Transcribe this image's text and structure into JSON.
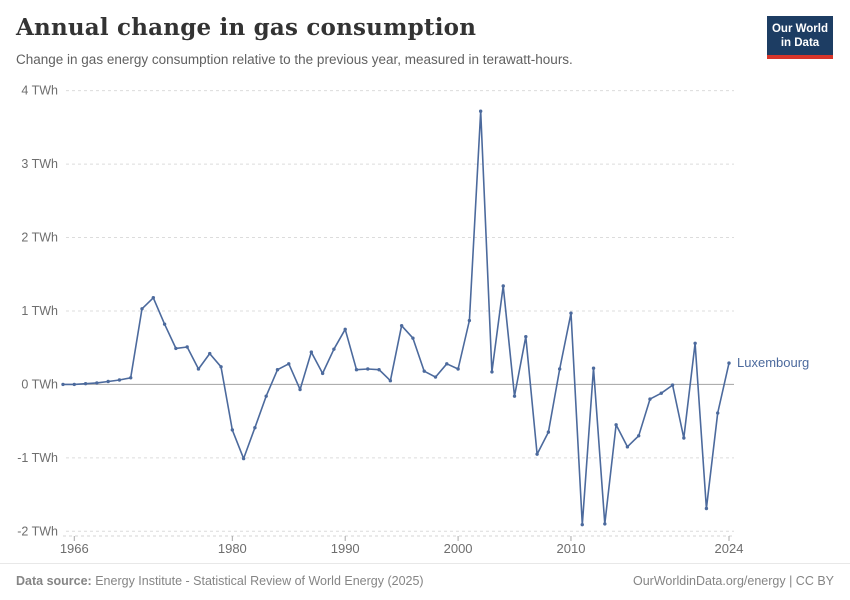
{
  "header": {
    "title": "Annual change in gas consumption",
    "subtitle": "Change in gas energy consumption relative to the previous year, measured in terawatt-hours."
  },
  "logo": {
    "line1": "Our World",
    "line2": "in Data",
    "bg_color": "#1d3d63",
    "bar_color": "#d8352a"
  },
  "footer": {
    "source_label": "Data source:",
    "source_text": " Energy Institute - Statistical Review of World Energy (2025)",
    "right_text": "OurWorldinData.org/energy | CC BY"
  },
  "chart_data": {
    "type": "line",
    "title": "Annual change in gas consumption",
    "entity_label": "Luxembourg",
    "unit_suffix": " TWh",
    "line_color": "#4c6a9d",
    "zero_line_color": "#a3a3a3",
    "grid_color": "#dcdcdc",
    "axis_text_color": "#6e6e6e",
    "ylim": [
      -2,
      4
    ],
    "yticks": [
      4,
      3,
      2,
      1,
      0,
      -1,
      -2
    ],
    "xticks": [
      1966,
      1980,
      1990,
      2000,
      2010,
      2024
    ],
    "x": [
      1965,
      1966,
      1967,
      1968,
      1969,
      1970,
      1971,
      1972,
      1973,
      1974,
      1975,
      1976,
      1977,
      1978,
      1979,
      1980,
      1981,
      1982,
      1983,
      1984,
      1985,
      1986,
      1987,
      1988,
      1989,
      1990,
      1991,
      1992,
      1993,
      1994,
      1995,
      1996,
      1997,
      1998,
      1999,
      2000,
      2001,
      2002,
      2003,
      2004,
      2005,
      2006,
      2007,
      2008,
      2009,
      2010,
      2011,
      2012,
      2013,
      2014,
      2015,
      2016,
      2017,
      2018,
      2019,
      2020,
      2021,
      2022,
      2023,
      2024
    ],
    "series": [
      {
        "name": "Luxembourg",
        "values": [
          0.0,
          0.0,
          0.01,
          0.02,
          0.04,
          0.06,
          0.09,
          1.03,
          1.18,
          0.82,
          0.49,
          0.51,
          0.21,
          0.42,
          0.24,
          -0.62,
          -1.01,
          -0.59,
          -0.16,
          0.2,
          0.28,
          -0.07,
          0.44,
          0.15,
          0.48,
          0.75,
          0.2,
          0.21,
          0.2,
          0.05,
          0.8,
          0.63,
          0.18,
          0.1,
          0.28,
          0.21,
          0.87,
          3.72,
          0.17,
          1.34,
          -0.16,
          0.65,
          -0.95,
          -0.65,
          0.21,
          0.97,
          -1.91,
          0.22,
          -1.9,
          -0.55,
          -0.85,
          -0.7,
          -0.2,
          -0.12,
          -0.01,
          -0.73,
          0.56,
          -1.69,
          -0.39,
          0.29
        ]
      }
    ]
  }
}
